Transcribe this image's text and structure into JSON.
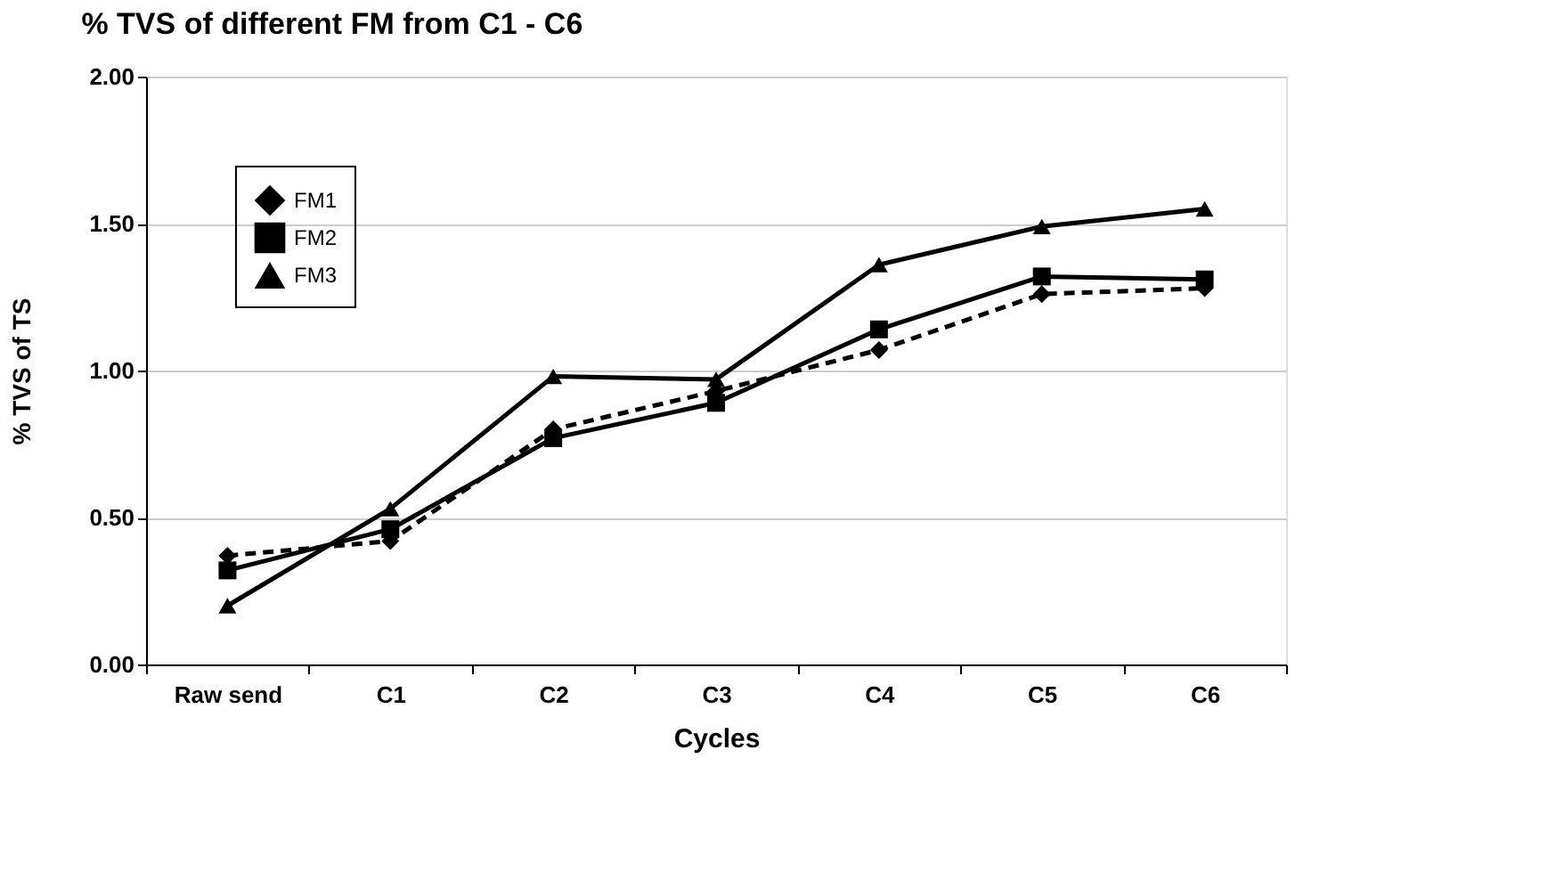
{
  "chart_data": {
    "type": "line",
    "title": "% TVS of different  FM from C1 - C6",
    "xlabel": "Cycles",
    "ylabel": "% TVS of TS",
    "categories": [
      "Raw send",
      "C1",
      "C2",
      "C3",
      "C4",
      "C5",
      "C6"
    ],
    "series": [
      {
        "name": "FM1",
        "color": "#000000",
        "marker": "diamond",
        "line_style": "dashed",
        "values": [
          0.37,
          0.42,
          0.8,
          0.93,
          1.07,
          1.26,
          1.28
        ]
      },
      {
        "name": "FM2",
        "color": "#000000",
        "marker": "square",
        "line_style": "solid",
        "values": [
          0.32,
          0.46,
          0.77,
          0.89,
          1.14,
          1.32,
          1.31
        ]
      },
      {
        "name": "FM3",
        "color": "#000000",
        "marker": "triangle",
        "line_style": "solid",
        "values": [
          0.2,
          0.53,
          0.98,
          0.97,
          1.36,
          1.49,
          1.55
        ]
      }
    ],
    "ylim": [
      0,
      2
    ],
    "yticks": [
      {
        "value": 0,
        "label": "0.00"
      },
      {
        "value": 0.5,
        "label": "0.50"
      },
      {
        "value": 1,
        "label": "1.00"
      },
      {
        "value": 1.5,
        "label": "1.50"
      },
      {
        "value": 2,
        "label": "2.00"
      }
    ],
    "grid": "y",
    "legend": "top left"
  }
}
